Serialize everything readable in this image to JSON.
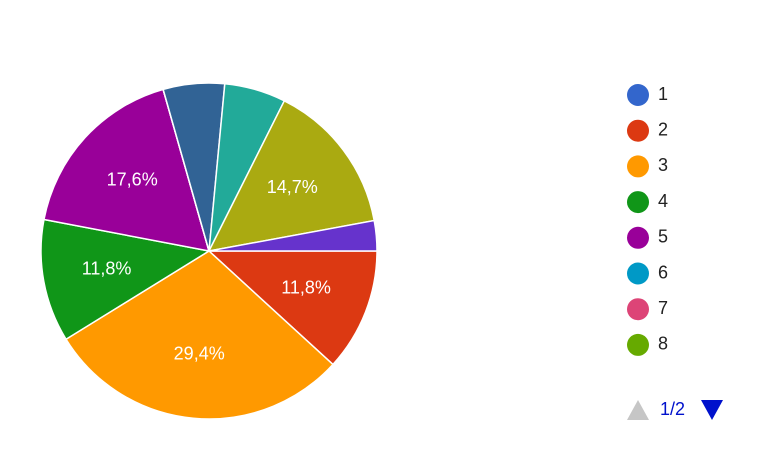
{
  "chart_data": {
    "type": "pie",
    "categories": [
      "1",
      "2",
      "3",
      "4",
      "5",
      "6",
      "7",
      "8",
      null,
      null,
      null,
      null
    ],
    "values": [
      0,
      11.8,
      29.4,
      11.8,
      17.6,
      0,
      0,
      0,
      5.9,
      5.9,
      14.7,
      2.9
    ],
    "value_labels": [
      null,
      "11,8%",
      "29,4%",
      "11,8%",
      "17,6%",
      null,
      null,
      null,
      null,
      null,
      "14,7%",
      null
    ],
    "colors": [
      "#3366cc",
      "#dc3912",
      "#ff9900",
      "#109618",
      "#990099",
      "#0099c6",
      "#dd4477",
      "#66aa00",
      "#316395",
      "#22aa99",
      "#aaaa11",
      "#6633cc"
    ],
    "legend_position": "right",
    "pager": "1/2"
  }
}
